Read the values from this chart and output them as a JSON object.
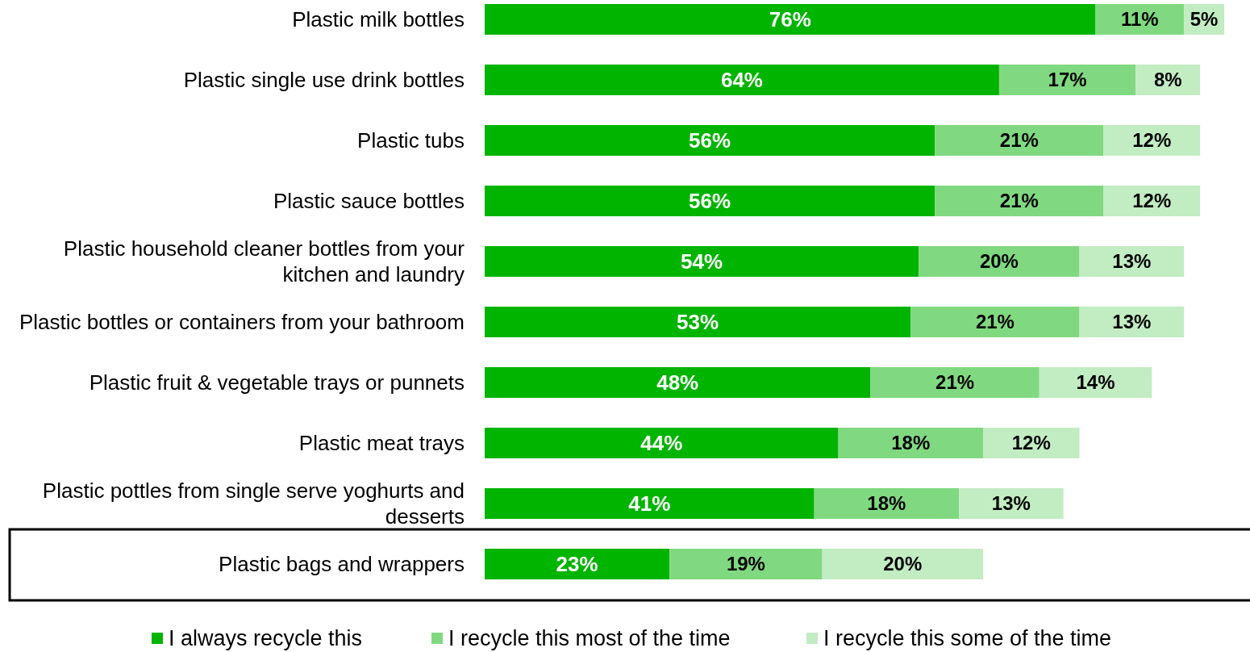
{
  "chart_data": {
    "type": "bar",
    "orientation": "horizontal",
    "stacked": true,
    "legend": "bottom",
    "tick_labels": "y",
    "categories": [
      "Plastic milk bottles",
      "Plastic single use drink bottles",
      "Plastic tubs",
      "Plastic sauce bottles",
      "Plastic household cleaner bottles from your kitchen and laundry",
      "Plastic bottles or containers from your bathroom",
      "Plastic fruit & vegetable trays or punnets",
      "Plastic meat trays",
      "Plastic pottles from single serve yoghurts and desserts",
      "Plastic bags and wrappers"
    ],
    "series": [
      {
        "name": "I always recycle this",
        "color": "#00b400",
        "values": [
          76,
          64,
          56,
          56,
          54,
          53,
          48,
          44,
          41,
          23
        ],
        "value_labels": [
          "76%",
          "64%",
          "56%",
          "56%",
          "54%",
          "53%",
          "48%",
          "44%",
          "41%",
          "23%"
        ]
      },
      {
        "name": "I recycle this most of the time",
        "color": "#80d980",
        "values": [
          11,
          17,
          21,
          21,
          20,
          21,
          21,
          18,
          18,
          19
        ],
        "value_labels": [
          "11%",
          "17%",
          "21%",
          "21%",
          "20%",
          "21%",
          "21%",
          "18%",
          "18%",
          "19%"
        ]
      },
      {
        "name": "I recycle this some of the time",
        "color": "#c2ecc2",
        "values": [
          5,
          8,
          12,
          12,
          13,
          13,
          14,
          12,
          13,
          20
        ],
        "value_labels": [
          "5%",
          "8%",
          "12%",
          "12%",
          "13%",
          "13%",
          "14%",
          "12%",
          "13%",
          "20%"
        ]
      }
    ]
  }
}
